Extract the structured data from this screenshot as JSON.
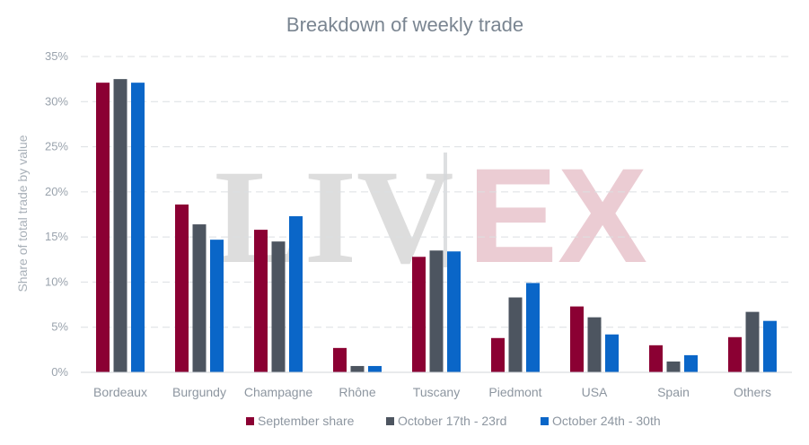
{
  "watermark": {
    "text_left": "LIV",
    "text_right": "EX"
  },
  "chart_data": {
    "type": "bar",
    "title": "Breakdown of weekly trade",
    "xlabel": "",
    "ylabel": "Share of total trade by value",
    "ylim": [
      0,
      35
    ],
    "y_ticks": [
      "0%",
      "5%",
      "10%",
      "15%",
      "20%",
      "25%",
      "30%",
      "35%"
    ],
    "y_tick_values": [
      0,
      5,
      10,
      15,
      20,
      25,
      30,
      35
    ],
    "grid": true,
    "legend_position": "bottom",
    "categories": [
      "Bordeaux",
      "Burgundy",
      "Champagne",
      "Rhône",
      "Tuscany",
      "Piedmont",
      "USA",
      "Spain",
      "Others"
    ],
    "series": [
      {
        "name": "September share",
        "color": "#8b0033",
        "values": [
          32.1,
          18.6,
          15.8,
          2.7,
          12.8,
          3.8,
          7.3,
          3.0,
          3.9
        ]
      },
      {
        "name": "October 17th - 23rd",
        "color": "#4d5560",
        "values": [
          32.5,
          16.4,
          14.5,
          0.7,
          13.5,
          8.3,
          6.1,
          1.2,
          6.7
        ]
      },
      {
        "name": "October 24th - 30th",
        "color": "#0a66c8",
        "values": [
          32.1,
          14.7,
          17.3,
          0.7,
          13.4,
          9.9,
          4.2,
          1.9,
          5.7
        ]
      }
    ]
  }
}
